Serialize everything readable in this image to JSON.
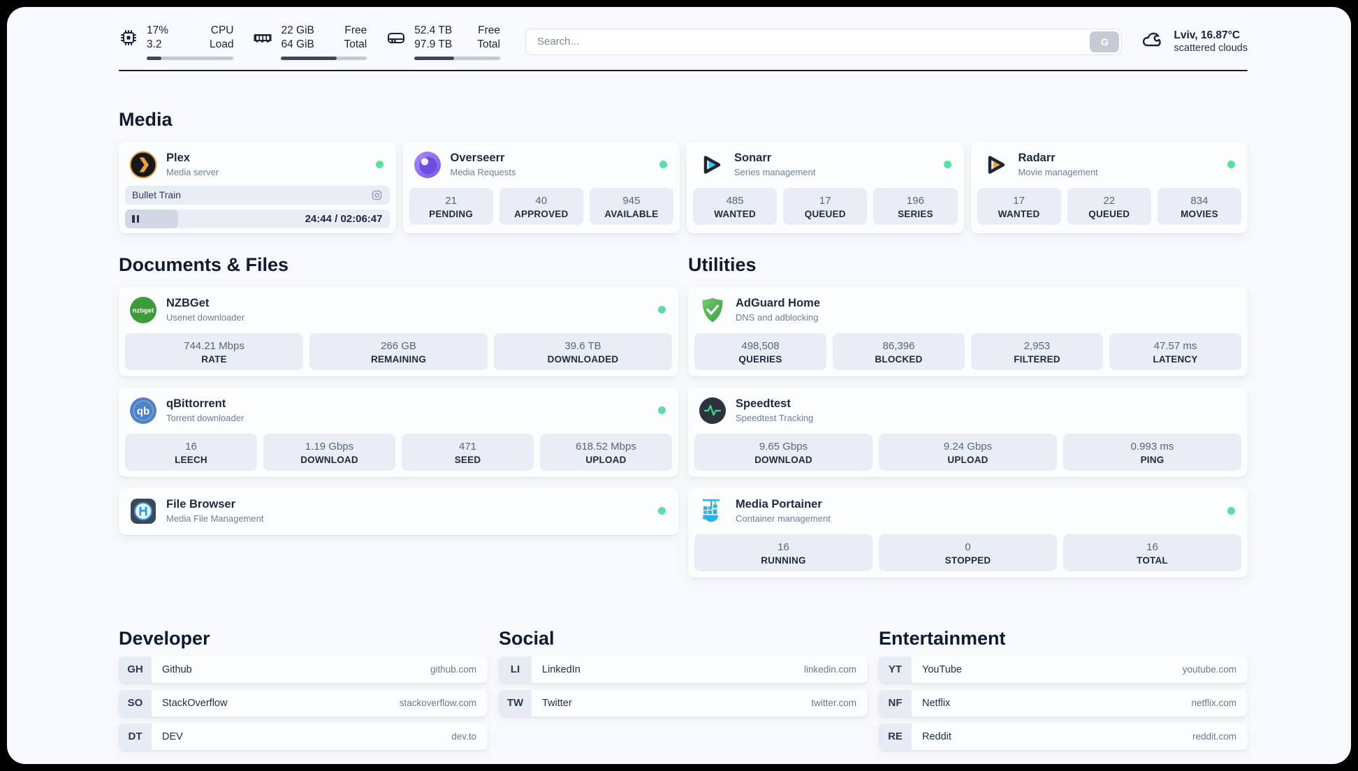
{
  "topbar": {
    "system_stats": [
      {
        "icon": "cpu-icon",
        "value_top": "17%",
        "value_bottom": "3.2",
        "label_top": "CPU",
        "label_bottom": "Load",
        "progress_pct": 17
      },
      {
        "icon": "memory-icon",
        "value_top": "22 GiB",
        "value_bottom": "64 GiB",
        "label_top": "Free",
        "label_bottom": "Total",
        "progress_pct": 65
      },
      {
        "icon": "disk-icon",
        "value_top": "52.4 TB",
        "value_bottom": "97.9 TB",
        "label_top": "Free",
        "label_bottom": "Total",
        "progress_pct": 46
      }
    ],
    "search": {
      "placeholder": "Search...",
      "button_label": "G"
    },
    "weather": {
      "icon": "cloud-icon",
      "location_temp": "Lviv, 16.87°C",
      "condition": "scattered clouds"
    }
  },
  "sections": {
    "media": {
      "title": "Media",
      "apps": [
        {
          "icon": "plex-icon",
          "name": "Plex",
          "subtitle": "Media server",
          "online": true,
          "now_playing": {
            "title": "Bullet Train",
            "time": "24:44 / 02:06:47",
            "progress_pct": 20
          }
        },
        {
          "icon": "overseerr-icon",
          "name": "Overseerr",
          "subtitle": "Media Requests",
          "online": true,
          "stats": [
            {
              "value": "21",
              "label": "PENDING"
            },
            {
              "value": "40",
              "label": "APPROVED"
            },
            {
              "value": "945",
              "label": "AVAILABLE"
            }
          ]
        },
        {
          "icon": "sonarr-icon",
          "name": "Sonarr",
          "subtitle": "Series management",
          "online": true,
          "stats": [
            {
              "value": "485",
              "label": "WANTED"
            },
            {
              "value": "17",
              "label": "QUEUED"
            },
            {
              "value": "196",
              "label": "SERIES"
            }
          ]
        },
        {
          "icon": "radarr-icon",
          "name": "Radarr",
          "subtitle": "Movie management",
          "online": true,
          "stats": [
            {
              "value": "17",
              "label": "WANTED"
            },
            {
              "value": "22",
              "label": "QUEUED"
            },
            {
              "value": "834",
              "label": "MOVIES"
            }
          ]
        }
      ]
    },
    "documents": {
      "title": "Documents & Files",
      "apps": [
        {
          "icon": "nzbget-icon",
          "name": "NZBGet",
          "subtitle": "Usenet downloader",
          "online": true,
          "stats": [
            {
              "value": "744.21 Mbps",
              "label": "RATE"
            },
            {
              "value": "266 GB",
              "label": "REMAINING"
            },
            {
              "value": "39.6 TB",
              "label": "DOWNLOADED"
            }
          ]
        },
        {
          "icon": "qbittorrent-icon",
          "name": "qBittorrent",
          "subtitle": "Torrent downloader",
          "online": true,
          "stats": [
            {
              "value": "16",
              "label": "LEECH"
            },
            {
              "value": "1.19 Gbps",
              "label": "DOWNLOAD"
            },
            {
              "value": "471",
              "label": "SEED"
            },
            {
              "value": "618.52 Mbps",
              "label": "UPLOAD"
            }
          ]
        },
        {
          "icon": "filebrowser-icon",
          "name": "File Browser",
          "subtitle": "Media File Management",
          "online": true,
          "stats": []
        }
      ]
    },
    "utilities": {
      "title": "Utilities",
      "apps": [
        {
          "icon": "adguard-icon",
          "name": "AdGuard Home",
          "subtitle": "DNS and adblocking",
          "online": false,
          "stats": [
            {
              "value": "498,508",
              "label": "QUERIES"
            },
            {
              "value": "86,396",
              "label": "BLOCKED"
            },
            {
              "value": "2,953",
              "label": "FILTERED"
            },
            {
              "value": "47.57 ms",
              "label": "LATENCY"
            }
          ]
        },
        {
          "icon": "speedtest-icon",
          "name": "Speedtest",
          "subtitle": "Speedtest Tracking",
          "online": false,
          "stats": [
            {
              "value": "9.65 Gbps",
              "label": "DOWNLOAD"
            },
            {
              "value": "9.24 Gbps",
              "label": "UPLOAD"
            },
            {
              "value": "0.993 ms",
              "label": "PING"
            }
          ]
        },
        {
          "icon": "portainer-icon",
          "name": "Media Portainer",
          "subtitle": "Container management",
          "online": true,
          "stats": [
            {
              "value": "16",
              "label": "RUNNING"
            },
            {
              "value": "0",
              "label": "STOPPED"
            },
            {
              "value": "16",
              "label": "TOTAL"
            }
          ]
        }
      ]
    },
    "developer": {
      "title": "Developer",
      "links": [
        {
          "abbr": "GH",
          "name": "Github",
          "url": "github.com"
        },
        {
          "abbr": "SO",
          "name": "StackOverflow",
          "url": "stackoverflow.com"
        },
        {
          "abbr": "DT",
          "name": "DEV",
          "url": "dev.to"
        }
      ]
    },
    "social": {
      "title": "Social",
      "links": [
        {
          "abbr": "LI",
          "name": "LinkedIn",
          "url": "linkedin.com"
        },
        {
          "abbr": "TW",
          "name": "Twitter",
          "url": "twitter.com"
        }
      ]
    },
    "entertainment": {
      "title": "Entertainment",
      "links": [
        {
          "abbr": "YT",
          "name": "YouTube",
          "url": "youtube.com"
        },
        {
          "abbr": "NF",
          "name": "Netflix",
          "url": "netflix.com"
        },
        {
          "abbr": "RE",
          "name": "Reddit",
          "url": "reddit.com"
        }
      ]
    }
  },
  "colors": {
    "status_online": "#5dde9e",
    "progress_fill": "#3a4660",
    "divider": "#141e33"
  }
}
